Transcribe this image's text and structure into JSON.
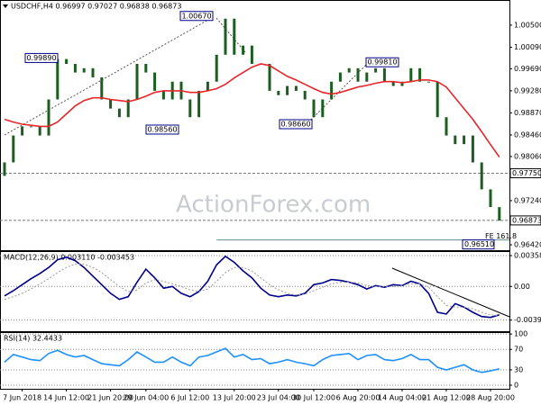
{
  "chart_data": [
    {
      "type": "candlestick",
      "title": "USDCHF,H4  0.96997 0.97027 0.96838 0.96873",
      "watermark": "ActionForex.com",
      "categories": [
        null,
        null,
        "7 Jun 2018",
        null,
        null,
        null,
        null,
        "14 Jun 12:00",
        null,
        null,
        null,
        null,
        "21 Jun 20:00",
        null,
        null,
        null,
        "29 Jun 04:00",
        null,
        null,
        null,
        null,
        "6 Jul 12:00",
        null,
        null,
        null,
        null,
        "13 Jul 20:00",
        null,
        null,
        null,
        null,
        "23 Jul 04:00",
        null,
        null,
        null,
        "30 Jul 12:00",
        null,
        null,
        null,
        null,
        "6 Aug 20:00",
        null,
        null,
        null,
        null,
        "14 Aug 04:00",
        null,
        null,
        null,
        null,
        "21 Aug 12:00",
        null,
        null,
        null,
        null,
        "28 Aug 20:00",
        null
      ],
      "open": [
        0.977,
        0.9795,
        0.9845,
        0.9862,
        0.9862,
        0.9845,
        0.9912,
        0.9987,
        0.9978,
        0.9962,
        0.997,
        0.9953,
        0.9912,
        0.9895,
        0.9879,
        0.9912,
        0.9978,
        0.9962,
        0.9928,
        0.9912,
        0.9945,
        0.9912,
        0.9879,
        0.9928,
        0.9945,
        0.9995,
        1.0062,
        0.9995,
        1.0012,
        0.9978,
        0.9978,
        0.9928,
        0.992,
        0.9937,
        0.9928,
        0.9912,
        0.9879,
        0.9912,
        0.9945,
        0.9962,
        0.997,
        0.9945,
        0.9962,
        0.997,
        0.9945,
        0.9937,
        0.9945,
        0.997,
        0.9945,
        0.9945,
        0.9879,
        0.9845,
        0.9829,
        0.9845,
        0.9795,
        0.9745,
        0.9712
      ],
      "close": [
        0.9795,
        0.9845,
        0.9862,
        0.9862,
        0.9845,
        0.9912,
        0.9987,
        0.9978,
        0.9962,
        0.997,
        0.9953,
        0.9912,
        0.9895,
        0.9879,
        0.9912,
        0.9978,
        0.9962,
        0.9928,
        0.9912,
        0.9945,
        0.9912,
        0.9879,
        0.9928,
        0.9945,
        0.9995,
        1.0062,
        0.9995,
        1.0012,
        0.9978,
        0.9978,
        0.9928,
        0.992,
        0.9937,
        0.9928,
        0.9912,
        0.9879,
        0.9912,
        0.9945,
        0.9962,
        0.997,
        0.9945,
        0.9962,
        0.997,
        0.9945,
        0.9937,
        0.9945,
        0.997,
        0.9945,
        0.9945,
        0.9879,
        0.9845,
        0.9829,
        0.9845,
        0.9795,
        0.9745,
        0.9712,
        0.9687
      ],
      "color": "#1b5e20",
      "line": {
        "color": "#e8262a",
        "values": [
          0.9875,
          0.987,
          0.9866,
          0.9864,
          0.9862,
          0.9862,
          0.987,
          0.9885,
          0.99,
          0.991,
          0.9915,
          0.9915,
          0.9912,
          0.991,
          0.9908,
          0.9912,
          0.9918,
          0.9925,
          0.9928,
          0.9928,
          0.9928,
          0.9925,
          0.9925,
          0.9928,
          0.9932,
          0.994,
          0.9952,
          0.9962,
          0.9972,
          0.9978,
          0.9975,
          0.9965,
          0.9955,
          0.9948,
          0.994,
          0.9932,
          0.9925,
          0.9922,
          0.9925,
          0.993,
          0.9935,
          0.9938,
          0.9942,
          0.9945,
          0.9945,
          0.9943,
          0.9945,
          0.9948,
          0.9948,
          0.9945,
          0.9935,
          0.9915,
          0.9895,
          0.9875,
          0.9852,
          0.9828,
          0.9805
        ]
      },
      "ylim": [
        0.9632,
        1.0095
      ],
      "yticks": [
        {
          "value": 1.005,
          "label": "1.00500"
        },
        {
          "value": 1.0009,
          "label": "1.00090"
        },
        {
          "value": 0.9969,
          "label": "0.99690"
        },
        {
          "value": 0.9928,
          "label": "0.99280"
        },
        {
          "value": 0.9887,
          "label": "0.98870"
        },
        {
          "value": 0.9846,
          "label": "0.98460"
        },
        {
          "value": 0.9806,
          "label": "0.98060"
        },
        {
          "value": 0.9724,
          "label": "0.97240"
        },
        {
          "value": 0.9642,
          "label": "0.96420"
        }
      ],
      "levels": [
        {
          "value": 0.9775,
          "label": "0.97750"
        },
        {
          "value": 0.96873,
          "label": "0.96873"
        }
      ],
      "support": {
        "value": 0.9651,
        "label": "0.96510",
        "note": "FE 161.8"
      },
      "annotations": [
        {
          "value": 1.0067,
          "label": "1.00670"
        },
        {
          "value": 0.9989,
          "label": "0.99890"
        },
        {
          "value": 0.9856,
          "label": "0.98560"
        },
        {
          "value": 0.9866,
          "label": "0.98660"
        },
        {
          "value": 0.9981,
          "label": "0.99810"
        }
      ]
    },
    {
      "type": "line",
      "title": "MACD(12,26,9) 0.003110 -0.003453",
      "series": [
        {
          "color": "#00008b",
          "values": [
            -0.0011,
            -0.0005,
            0.0002,
            0.0009,
            0.0015,
            0.0022,
            0.0031,
            0.0034,
            0.003,
            0.0022,
            0.0012,
            0.0002,
            -0.0008,
            -0.0015,
            -0.0012,
            0.0005,
            0.002,
            0.001,
            -0.0002,
            0.0,
            -0.0008,
            -0.0012,
            -0.0006,
            0.0006,
            0.0025,
            0.0035,
            0.0028,
            0.0018,
            0.001,
            -0.0002,
            -0.001,
            -0.0012,
            -0.001,
            -0.0011,
            -0.0008,
            0.0002,
            0.0004,
            0.0008,
            0.0007,
            0.0005,
            0.0002,
            -0.0003,
            0.0001,
            -0.0001,
            0.0002,
            0.0001,
            0.0006,
            0.0003,
            -0.0008,
            -0.003,
            -0.0032,
            -0.002,
            -0.0024,
            -0.003,
            -0.0035,
            -0.0036,
            -0.0033
          ]
        },
        {
          "color": "#9a9a9a",
          "dash": true,
          "values": [
            -0.0015,
            -0.0012,
            -0.0008,
            -0.0003,
            0.0003,
            0.0009,
            0.0016,
            0.0022,
            0.0026,
            0.0026,
            0.0022,
            0.0016,
            0.0008,
            0.0,
            -0.0006,
            -0.0004,
            0.0004,
            0.0008,
            0.0006,
            0.0003,
            0.0,
            -0.0004,
            -0.0006,
            -0.0003,
            0.0006,
            0.0016,
            0.0022,
            0.0022,
            0.0018,
            0.001,
            0.0002,
            -0.0004,
            -0.0008,
            -0.001,
            -0.0009,
            -0.0005,
            -0.0001,
            0.0003,
            0.0005,
            0.0005,
            0.0004,
            0.0001,
            0.0,
            0.0,
            0.0,
            0.0001,
            0.0003,
            0.0003,
            -0.0001,
            -0.0012,
            -0.0022,
            -0.0024,
            -0.0024,
            -0.0026,
            -0.003,
            -0.0033,
            -0.0034
          ]
        }
      ],
      "ylim": [
        -0.0052,
        0.004
      ],
      "yticks": [
        0.00358,
        {
          "value": 0,
          "label": "0.00"
        },
        -0.003908
      ]
    },
    {
      "type": "line",
      "title": "RSI(14) 32.4433",
      "series": [
        {
          "color": "#1e90ff",
          "values": [
            45,
            60,
            55,
            50,
            48,
            62,
            68,
            60,
            55,
            58,
            50,
            42,
            40,
            38,
            50,
            65,
            55,
            45,
            45,
            55,
            45,
            38,
            55,
            58,
            65,
            72,
            55,
            60,
            50,
            52,
            42,
            45,
            50,
            45,
            42,
            38,
            50,
            58,
            60,
            62,
            50,
            58,
            60,
            50,
            48,
            52,
            60,
            50,
            50,
            35,
            30,
            35,
            40,
            30,
            25,
            28,
            32
          ]
        }
      ],
      "ylim": [
        -7,
        102
      ],
      "yticks": [
        100,
        70,
        30,
        0
      ]
    }
  ]
}
